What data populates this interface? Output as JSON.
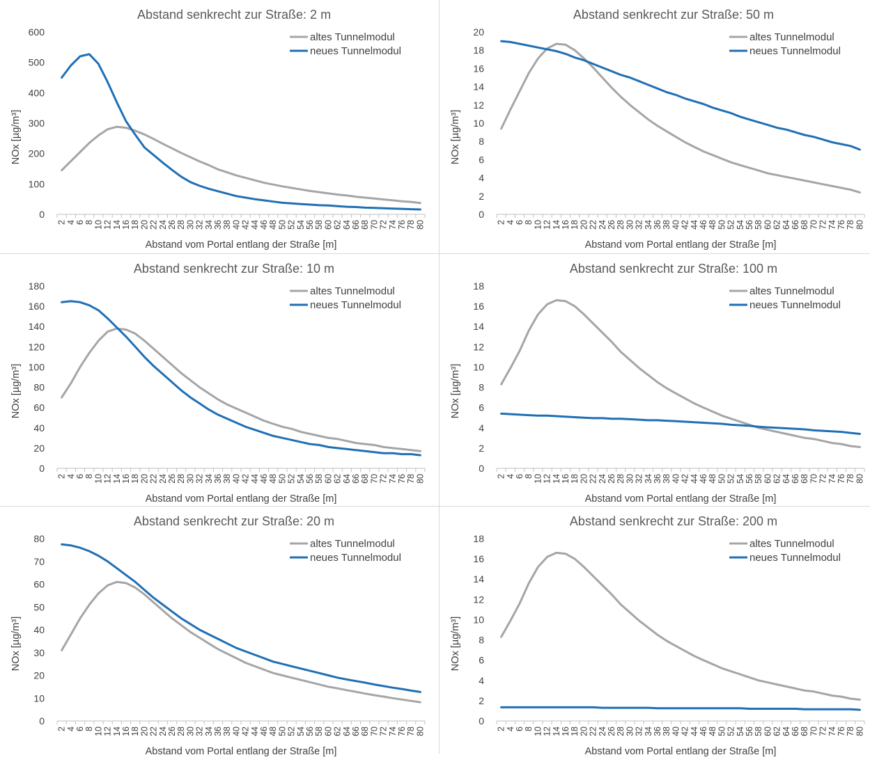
{
  "colors": {
    "old": "#a5a5a5",
    "new": "#1f6fb5",
    "axis": "#bfbfbf",
    "text": "#595959",
    "tick": "#404040"
  },
  "chart_data": [
    {
      "type": "line",
      "title": "Abstand senkrecht zur Straße: 2 m",
      "xlabel": "Abstand vom Portal entlang der Straße [m]",
      "ylabel": "NOx  [µg/m³]",
      "ylim": [
        0,
        600
      ],
      "ystep": 100,
      "x": [
        2,
        4,
        6,
        8,
        10,
        12,
        14,
        16,
        18,
        20,
        22,
        24,
        26,
        28,
        30,
        32,
        34,
        36,
        38,
        40,
        42,
        44,
        46,
        48,
        50,
        52,
        54,
        56,
        58,
        60,
        62,
        64,
        66,
        68,
        70,
        72,
        74,
        76,
        78,
        80
      ],
      "legend": "top-right",
      "series": [
        {
          "name": "altes Tunnelmodul",
          "values": [
            145,
            175,
            205,
            235,
            260,
            280,
            288,
            285,
            275,
            263,
            248,
            232,
            217,
            202,
            188,
            174,
            162,
            148,
            138,
            128,
            120,
            112,
            104,
            98,
            92,
            87,
            82,
            77,
            73,
            69,
            65,
            62,
            58,
            55,
            52,
            49,
            46,
            43,
            41,
            37
          ]
        },
        {
          "name": "neues Tunnelmodul",
          "values": [
            450,
            490,
            520,
            527,
            495,
            435,
            368,
            306,
            262,
            220,
            195,
            170,
            146,
            124,
            106,
            94,
            84,
            76,
            68,
            60,
            55,
            50,
            46,
            42,
            38,
            36,
            34,
            32,
            30,
            29,
            27,
            25,
            24,
            22,
            21,
            20,
            19,
            18,
            17,
            16
          ]
        }
      ]
    },
    {
      "type": "line",
      "title": "Abstand senkrecht zur Straße: 50 m",
      "xlabel": "Abstand vom Portal entlang der Straße [m]",
      "ylabel": "NOx  [µg/m³]",
      "ylim": [
        0,
        20
      ],
      "ystep": 2,
      "x": [
        2,
        4,
        6,
        8,
        10,
        12,
        14,
        16,
        18,
        20,
        22,
        24,
        26,
        28,
        30,
        32,
        34,
        36,
        38,
        40,
        42,
        44,
        46,
        48,
        50,
        52,
        54,
        56,
        58,
        60,
        62,
        64,
        66,
        68,
        70,
        72,
        74,
        76,
        78,
        80
      ],
      "legend": "top-right",
      "series": [
        {
          "name": "altes Tunnelmodul",
          "values": [
            9.4,
            11.5,
            13.5,
            15.5,
            17.1,
            18.2,
            18.7,
            18.6,
            18.0,
            17.1,
            16.1,
            15.0,
            13.9,
            12.9,
            12.0,
            11.2,
            10.4,
            9.7,
            9.1,
            8.5,
            7.9,
            7.4,
            6.9,
            6.5,
            6.1,
            5.7,
            5.4,
            5.1,
            4.8,
            4.5,
            4.3,
            4.1,
            3.9,
            3.7,
            3.5,
            3.3,
            3.1,
            2.9,
            2.7,
            2.4
          ]
        },
        {
          "name": "neues Tunnelmodul",
          "values": [
            19.0,
            18.9,
            18.7,
            18.5,
            18.3,
            18.1,
            17.9,
            17.6,
            17.2,
            16.9,
            16.5,
            16.1,
            15.7,
            15.3,
            15.0,
            14.6,
            14.2,
            13.8,
            13.4,
            13.1,
            12.7,
            12.4,
            12.1,
            11.7,
            11.4,
            11.1,
            10.7,
            10.4,
            10.1,
            9.8,
            9.5,
            9.3,
            9.0,
            8.7,
            8.5,
            8.2,
            7.9,
            7.7,
            7.5,
            7.1
          ]
        }
      ]
    },
    {
      "type": "line",
      "title": "Abstand senkrecht zur Straße: 10 m",
      "xlabel": "Abstand vom Portal entlang der Straße [m]",
      "ylabel": "NOx  [µg/m³]",
      "ylim": [
        0,
        180
      ],
      "ystep": 20,
      "x": [
        2,
        4,
        6,
        8,
        10,
        12,
        14,
        16,
        18,
        20,
        22,
        24,
        26,
        28,
        30,
        32,
        34,
        36,
        38,
        40,
        42,
        44,
        46,
        48,
        50,
        52,
        54,
        56,
        58,
        60,
        62,
        64,
        66,
        68,
        70,
        72,
        74,
        76,
        78,
        80
      ],
      "legend": "top-right",
      "series": [
        {
          "name": "altes Tunnelmodul",
          "values": [
            70,
            84,
            100,
            114,
            126,
            135,
            138,
            137,
            133,
            126,
            118,
            110,
            102,
            94,
            87,
            80,
            74,
            68,
            63,
            59,
            55,
            51,
            47,
            44,
            41,
            39,
            36,
            34,
            32,
            30,
            29,
            27,
            25,
            24,
            23,
            21,
            20,
            19,
            18,
            17
          ]
        },
        {
          "name": "neues Tunnelmodul",
          "values": [
            164,
            165,
            164,
            161,
            156,
            148,
            139,
            130,
            120,
            110,
            101,
            93,
            85,
            77,
            70,
            64,
            58,
            53,
            49,
            45,
            41,
            38,
            35,
            32,
            30,
            28,
            26,
            24,
            23,
            21,
            20,
            19,
            18,
            17,
            16,
            15,
            15,
            14,
            14,
            13
          ]
        }
      ]
    },
    {
      "type": "line",
      "title": "Abstand senkrecht zur Straße: 100 m",
      "xlabel": "Abstand vom Portal entlang der Straße [m]",
      "ylabel": "NOx  [µg/m³]",
      "ylim": [
        0,
        18
      ],
      "ystep": 2,
      "x": [
        2,
        4,
        6,
        8,
        10,
        12,
        14,
        16,
        18,
        20,
        22,
        24,
        26,
        28,
        30,
        32,
        34,
        36,
        38,
        40,
        42,
        44,
        46,
        48,
        50,
        52,
        54,
        56,
        58,
        60,
        62,
        64,
        66,
        68,
        70,
        72,
        74,
        76,
        78,
        80
      ],
      "legend": "top-right",
      "series": [
        {
          "name": "altes Tunnelmodul",
          "values": [
            8.3,
            9.9,
            11.6,
            13.6,
            15.2,
            16.2,
            16.6,
            16.5,
            16.0,
            15.2,
            14.3,
            13.4,
            12.5,
            11.5,
            10.7,
            9.9,
            9.2,
            8.5,
            7.9,
            7.4,
            6.9,
            6.4,
            6.0,
            5.6,
            5.2,
            4.9,
            4.6,
            4.3,
            4.0,
            3.8,
            3.6,
            3.4,
            3.2,
            3.0,
            2.9,
            2.7,
            2.5,
            2.4,
            2.2,
            2.1
          ]
        },
        {
          "name": "neues Tunnelmodul",
          "values": [
            5.4,
            5.35,
            5.3,
            5.25,
            5.2,
            5.2,
            5.15,
            5.1,
            5.05,
            5.0,
            4.95,
            4.95,
            4.9,
            4.9,
            4.85,
            4.8,
            4.75,
            4.75,
            4.7,
            4.65,
            4.6,
            4.55,
            4.5,
            4.45,
            4.4,
            4.3,
            4.25,
            4.2,
            4.1,
            4.05,
            4.0,
            3.95,
            3.9,
            3.85,
            3.75,
            3.7,
            3.65,
            3.6,
            3.5,
            3.4
          ]
        }
      ]
    },
    {
      "type": "line",
      "title": "Abstand senkrecht zur Straße: 20 m",
      "xlabel": "Abstand vom Portal entlang der Straße [m]",
      "ylabel": "NOx  [µg/m³]",
      "ylim": [
        0,
        80
      ],
      "ystep": 10,
      "x": [
        2,
        4,
        6,
        8,
        10,
        12,
        14,
        16,
        18,
        20,
        22,
        24,
        26,
        28,
        30,
        32,
        34,
        36,
        38,
        40,
        42,
        44,
        46,
        48,
        50,
        52,
        54,
        56,
        58,
        60,
        62,
        64,
        66,
        68,
        70,
        72,
        74,
        76,
        78,
        80
      ],
      "legend": "top-right",
      "series": [
        {
          "name": "altes Tunnelmodul",
          "values": [
            31,
            38,
            45,
            51,
            56,
            59.5,
            61,
            60.5,
            58.5,
            55.5,
            52,
            48.5,
            45,
            42,
            39,
            36.5,
            34,
            31.5,
            29.5,
            27.5,
            25.5,
            24,
            22.5,
            21,
            20,
            19,
            18,
            17,
            16,
            15,
            14.3,
            13.5,
            12.8,
            12,
            11.3,
            10.7,
            10,
            9.4,
            8.8,
            8.2
          ]
        },
        {
          "name": "neues Tunnelmodul",
          "values": [
            77.5,
            77,
            76,
            74.5,
            72.5,
            70,
            67,
            64,
            61,
            57.5,
            54,
            51,
            48,
            45,
            42.5,
            40,
            38,
            36,
            34,
            32,
            30.5,
            29,
            27.5,
            26,
            25,
            24,
            23,
            22,
            21,
            20,
            19,
            18.2,
            17.5,
            16.8,
            16,
            15.3,
            14.6,
            14,
            13.3,
            12.7
          ]
        }
      ]
    },
    {
      "type": "line",
      "title": "Abstand senkrecht zur Straße: 200 m",
      "xlabel": "Abstand vom Portal entlang der Straße [m]",
      "ylabel": "NOx  [µg/m³]",
      "ylim": [
        0,
        18
      ],
      "ystep": 2,
      "x": [
        2,
        4,
        6,
        8,
        10,
        12,
        14,
        16,
        18,
        20,
        22,
        24,
        26,
        28,
        30,
        32,
        34,
        36,
        38,
        40,
        42,
        44,
        46,
        48,
        50,
        52,
        54,
        56,
        58,
        60,
        62,
        64,
        66,
        68,
        70,
        72,
        74,
        76,
        78,
        80
      ],
      "legend": "top-right",
      "series": [
        {
          "name": "altes Tunnelmodul",
          "values": [
            8.3,
            9.9,
            11.6,
            13.6,
            15.2,
            16.2,
            16.6,
            16.5,
            16.0,
            15.2,
            14.3,
            13.4,
            12.5,
            11.5,
            10.7,
            9.9,
            9.2,
            8.5,
            7.9,
            7.4,
            6.9,
            6.4,
            6.0,
            5.6,
            5.2,
            4.9,
            4.6,
            4.3,
            4.0,
            3.8,
            3.6,
            3.4,
            3.2,
            3.0,
            2.9,
            2.7,
            2.5,
            2.4,
            2.2,
            2.1
          ]
        },
        {
          "name": "neues Tunnelmodul",
          "values": [
            1.35,
            1.35,
            1.35,
            1.35,
            1.35,
            1.35,
            1.35,
            1.35,
            1.35,
            1.35,
            1.35,
            1.3,
            1.3,
            1.3,
            1.3,
            1.3,
            1.3,
            1.25,
            1.25,
            1.25,
            1.25,
            1.25,
            1.25,
            1.25,
            1.25,
            1.25,
            1.25,
            1.2,
            1.2,
            1.2,
            1.2,
            1.2,
            1.2,
            1.15,
            1.15,
            1.15,
            1.15,
            1.15,
            1.15,
            1.1
          ]
        }
      ]
    }
  ]
}
